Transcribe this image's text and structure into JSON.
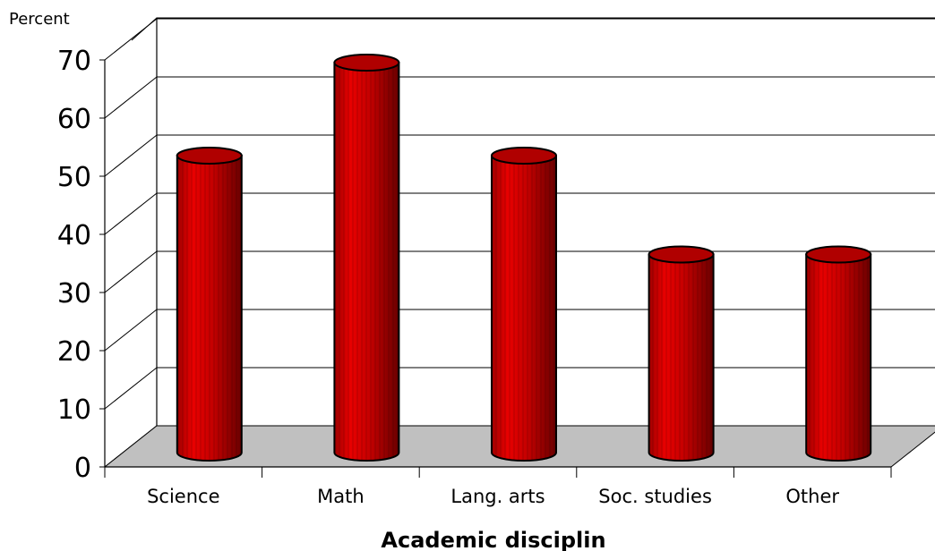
{
  "chart_data": {
    "type": "bar",
    "ylabel": "Percent",
    "xlabel": "Academic disciplin",
    "categories": [
      "Science",
      "Math",
      "Lang. arts",
      "Soc. studies",
      "Other"
    ],
    "values": [
      50,
      66,
      50,
      33,
      33
    ],
    "ylim": [
      0,
      70
    ],
    "yticks": [
      "0",
      "10",
      "20",
      "30",
      "40",
      "50",
      "60",
      "70"
    ],
    "grid": true,
    "legend": "none",
    "bar_color": "#cc0000",
    "floor_color": "#c0c0c0"
  }
}
